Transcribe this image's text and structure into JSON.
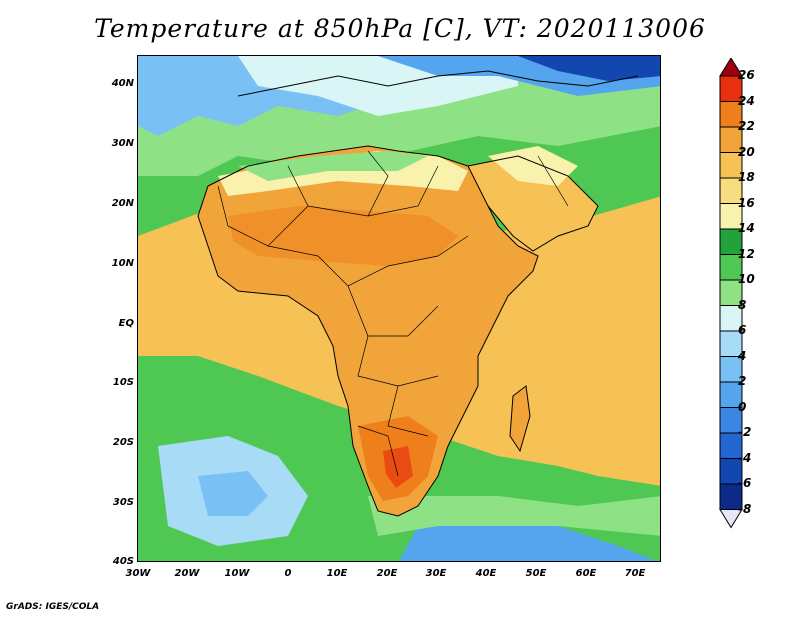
{
  "title": "Temperature at 850hPa [C], VT: 2020113006",
  "credit": "GrADS: IGES/COLA",
  "lat_labels": [
    "40N",
    "30N",
    "20N",
    "10N",
    "EQ",
    "10S",
    "20S",
    "30S",
    "40S"
  ],
  "lon_labels": [
    "30W",
    "20W",
    "10W",
    "0",
    "10E",
    "20E",
    "30E",
    "40E",
    "50E",
    "60E",
    "70E"
  ],
  "colorbar": {
    "labels": [
      "26",
      "24",
      "22",
      "20",
      "18",
      "16",
      "14",
      "12",
      "10",
      "8",
      "6",
      "4",
      "2",
      "0",
      "-2",
      "-4",
      "-6",
      "-8"
    ],
    "colors": [
      "#a0000b",
      "#e8300f",
      "#ee7f1b",
      "#f1a43a",
      "#f6c256",
      "#f8dc80",
      "#f9f2ad",
      "#21a23b",
      "#4ec853",
      "#8fe186",
      "#daf5f6",
      "#a8dcf6",
      "#79c1f4",
      "#55a5ee",
      "#3a86e3",
      "#2366d2",
      "#1247b0",
      "#0b2a8a",
      "#081768"
    ]
  },
  "map": {
    "colors": {
      "ocean_cool": "#79c1f4",
      "ocean_mild": "#a8dcf6",
      "green": "#4ec853",
      "light_green": "#8fe186",
      "yellow": "#f9f2ad",
      "light_orange": "#f6c256",
      "orange": "#f1a43a",
      "hot": "#ee7f1b",
      "very_hot": "#e8300f",
      "cold": "#3a86e3",
      "frigid": "#1247b0"
    }
  }
}
